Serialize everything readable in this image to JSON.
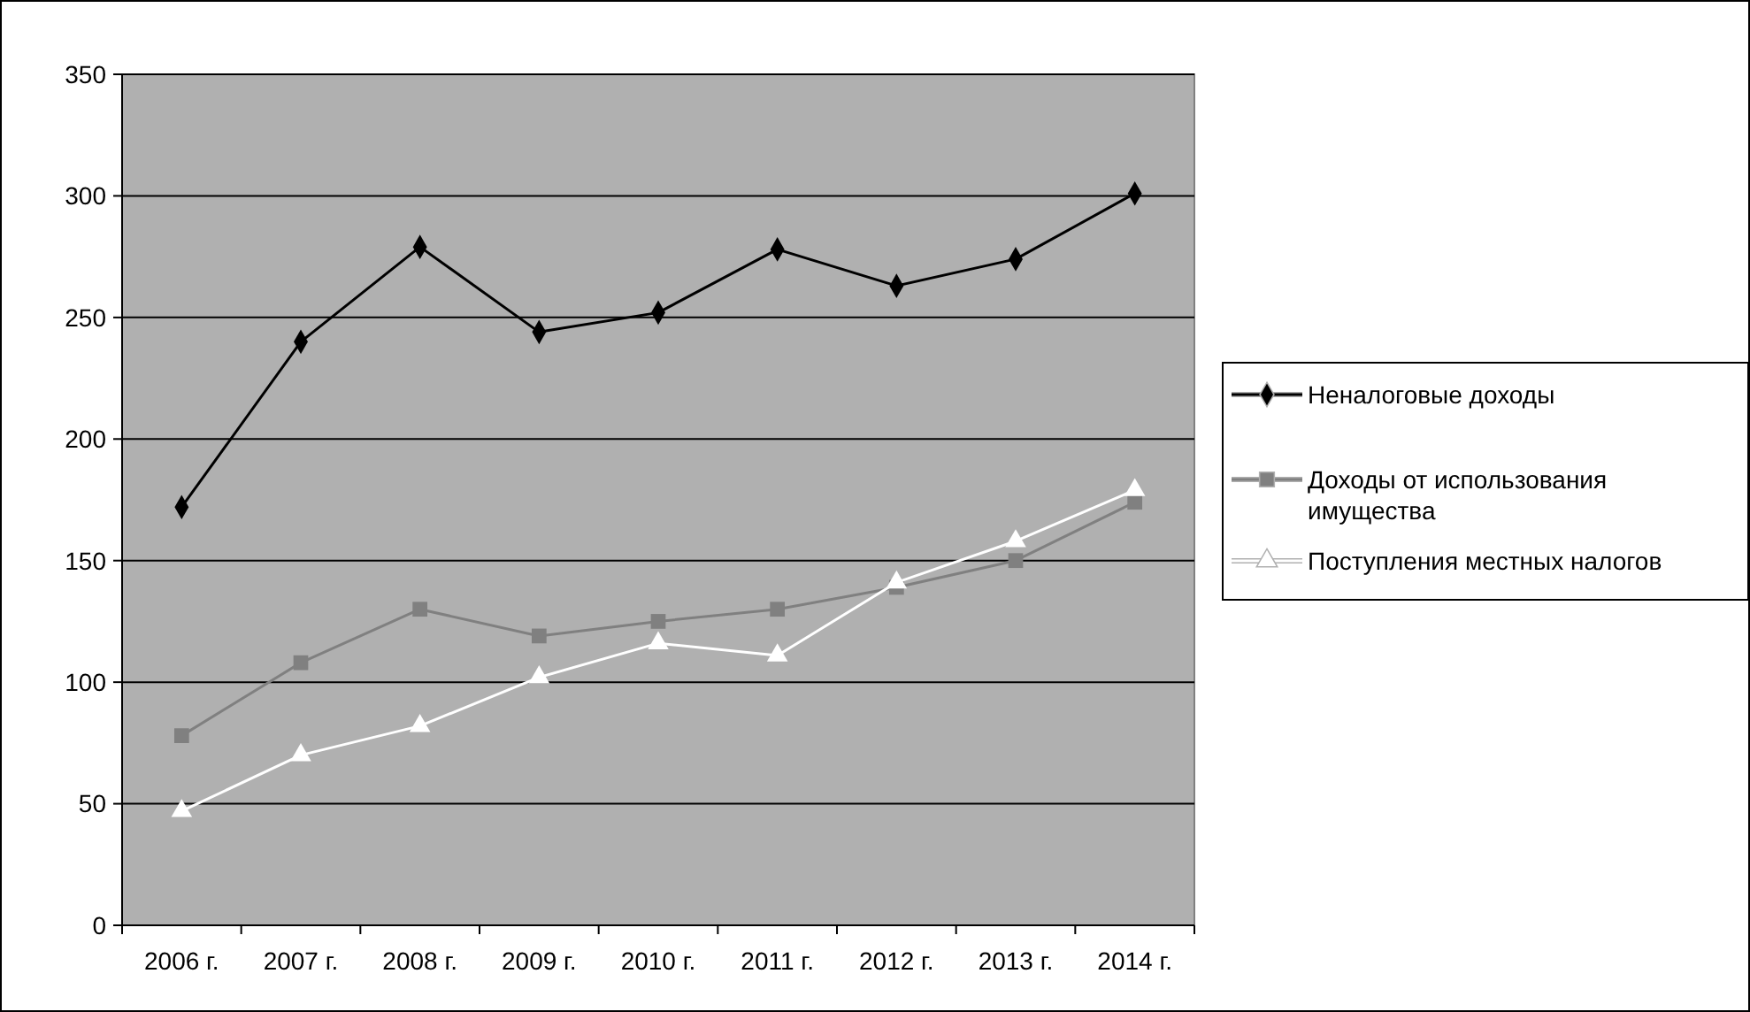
{
  "chart_data": {
    "type": "line",
    "categories": [
      "2006 г.",
      "2007 г.",
      "2008 г.",
      "2009 г.",
      "2010 г.",
      "2011 г.",
      "2012 г.",
      "2013 г.",
      "2014 г."
    ],
    "series": [
      {
        "name": "Неналоговые доходы",
        "color": "#000000",
        "marker": "diamond",
        "values": [
          172,
          240,
          279,
          244,
          252,
          278,
          263,
          274,
          301
        ]
      },
      {
        "name": "Доходы от использования имущества",
        "color": "#808080",
        "marker": "square",
        "values": [
          78,
          108,
          130,
          119,
          125,
          130,
          139,
          150,
          174
        ]
      },
      {
        "name": "Поступления местных налогов",
        "color": "#ffffff",
        "marker": "triangle",
        "values": [
          47,
          70,
          82,
          102,
          116,
          111,
          141,
          158,
          179
        ]
      }
    ],
    "ylim": [
      0,
      350
    ],
    "yticks": [
      0,
      50,
      100,
      150,
      200,
      250,
      300,
      350
    ],
    "grid": "y",
    "legend": "right"
  }
}
